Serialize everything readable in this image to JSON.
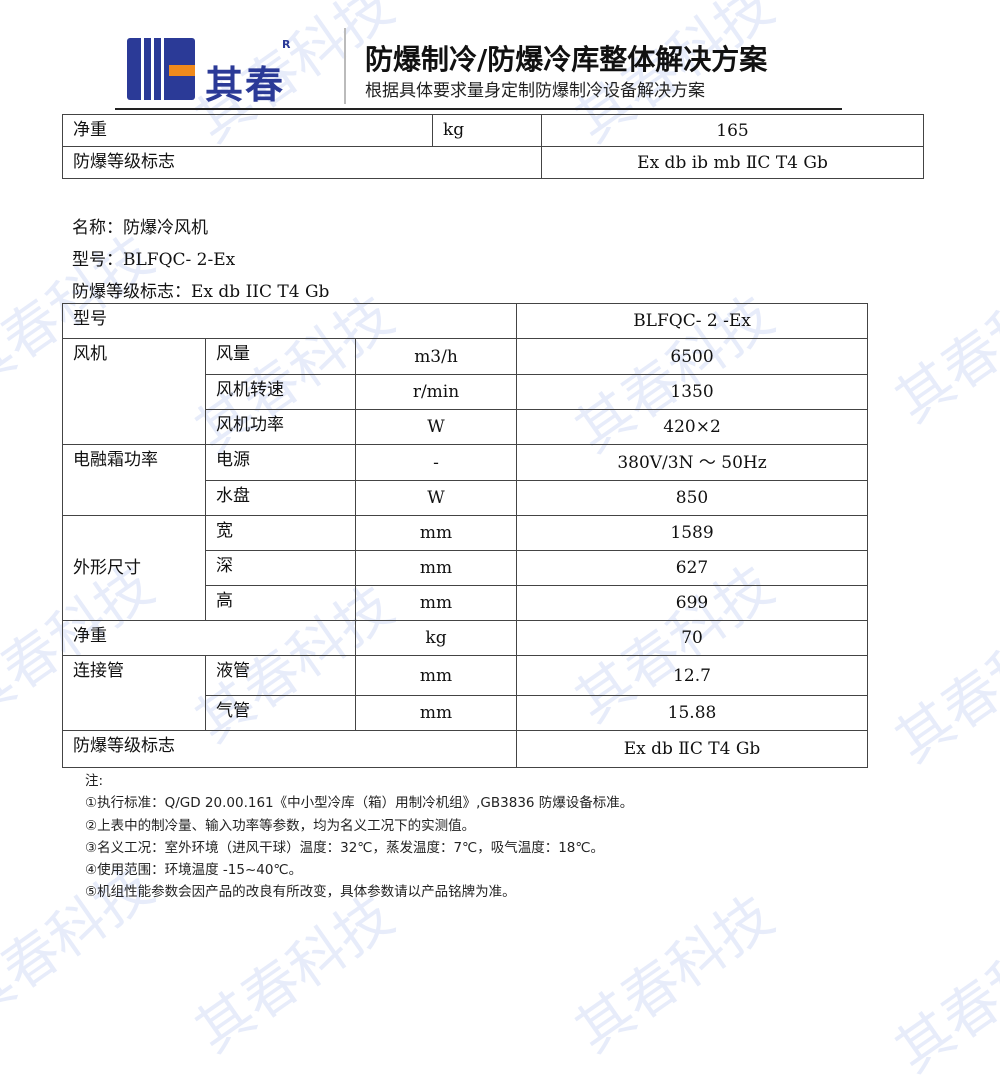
{
  "header": {
    "brand": "其春",
    "registered": "R",
    "title": "防爆制冷/防爆冷库整体解决方案",
    "subtitle": "根据具体要求量身定制防爆制冷设备解决方案",
    "colors": {
      "brand_blue": "#2b3a97",
      "accent_orange": "#f08a1c"
    }
  },
  "watermark": "其春科技",
  "top_table": [
    {
      "label": "净重",
      "unit": "kg",
      "value": "165"
    },
    {
      "label": "防爆等级标志",
      "value": "Ex db ib mb ⅡC T4 Gb"
    }
  ],
  "info": {
    "name": "名称：防爆冷风机",
    "model": "型号：BLFQC- 2-Ex",
    "ex_mark": "防爆等级标志：Ex db IIC T4 Gb"
  },
  "table": {
    "model_label": "型号",
    "model_value": "BLFQC- 2 -Ex",
    "fan": {
      "label": "风机",
      "rows": [
        {
          "item": "风量",
          "unit": "m3/h",
          "value": "6500"
        },
        {
          "item": "风机转速",
          "unit": "r/min",
          "value": "1350"
        },
        {
          "item": "风机功率",
          "unit": "W",
          "value": "420×2"
        }
      ]
    },
    "defrost": {
      "label": "电融霜功率",
      "rows": [
        {
          "item": "电源",
          "unit": "-",
          "value": "380V/3N ～ 50Hz"
        },
        {
          "item": "水盘",
          "unit": "W",
          "value": "850"
        }
      ]
    },
    "dims": {
      "label": "外形尺寸",
      "rows": [
        {
          "item": "宽",
          "unit": "mm",
          "value": "1589"
        },
        {
          "item": "深",
          "unit": "mm",
          "value": "627"
        },
        {
          "item": "高",
          "unit": "mm",
          "value": "699"
        }
      ]
    },
    "weight": {
      "label": "净重",
      "unit": "kg",
      "value": "70"
    },
    "pipes": {
      "label": "连接管",
      "rows": [
        {
          "item": "液管",
          "unit": "mm",
          "value": "12.7"
        },
        {
          "item": "气管",
          "unit": "mm",
          "value": "15.88"
        }
      ]
    },
    "ex": {
      "label": "防爆等级标志",
      "value": "Ex db ⅡC T4 Gb"
    }
  },
  "notes": {
    "title": "注:",
    "items": [
      "①执行标准：Q/GD 20.00.161《中小型冷库（箱）用制冷机组》,GB3836 防爆设备标准。",
      "②上表中的制冷量、输入功率等参数，均为名义工况下的实测值。",
      "③名义工况：室外环境（进风干球）温度：32℃，蒸发温度：7℃，吸气温度：18℃。",
      "④使用范围：环境温度 -15~40℃。",
      "⑤机组性能参数会因产品的改良有所改变，具体参数请以产品铭牌为准。"
    ]
  }
}
